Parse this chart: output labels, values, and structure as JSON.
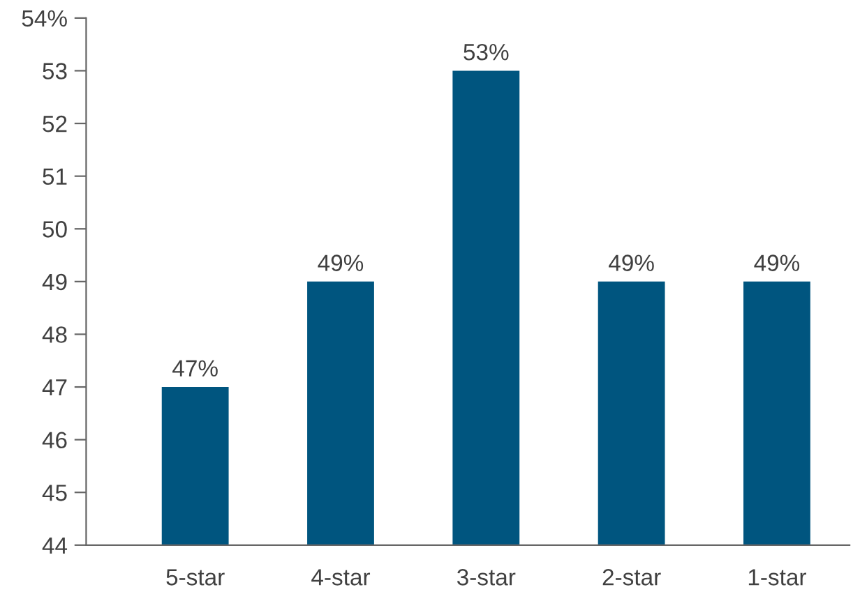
{
  "chart_data": {
    "type": "bar",
    "categories": [
      "5-star",
      "4-star",
      "3-star",
      "2-star",
      "1-star"
    ],
    "values": [
      47,
      49,
      53,
      49,
      49
    ],
    "value_labels": [
      "47%",
      "49%",
      "53%",
      "49%",
      "49%"
    ],
    "color": "#00557f",
    "ylim": [
      44,
      54
    ],
    "yticks": [
      44,
      45,
      46,
      47,
      48,
      49,
      50,
      51,
      52,
      53,
      {
        "value": 54,
        "label": "54%"
      }
    ],
    "grid": false
  }
}
